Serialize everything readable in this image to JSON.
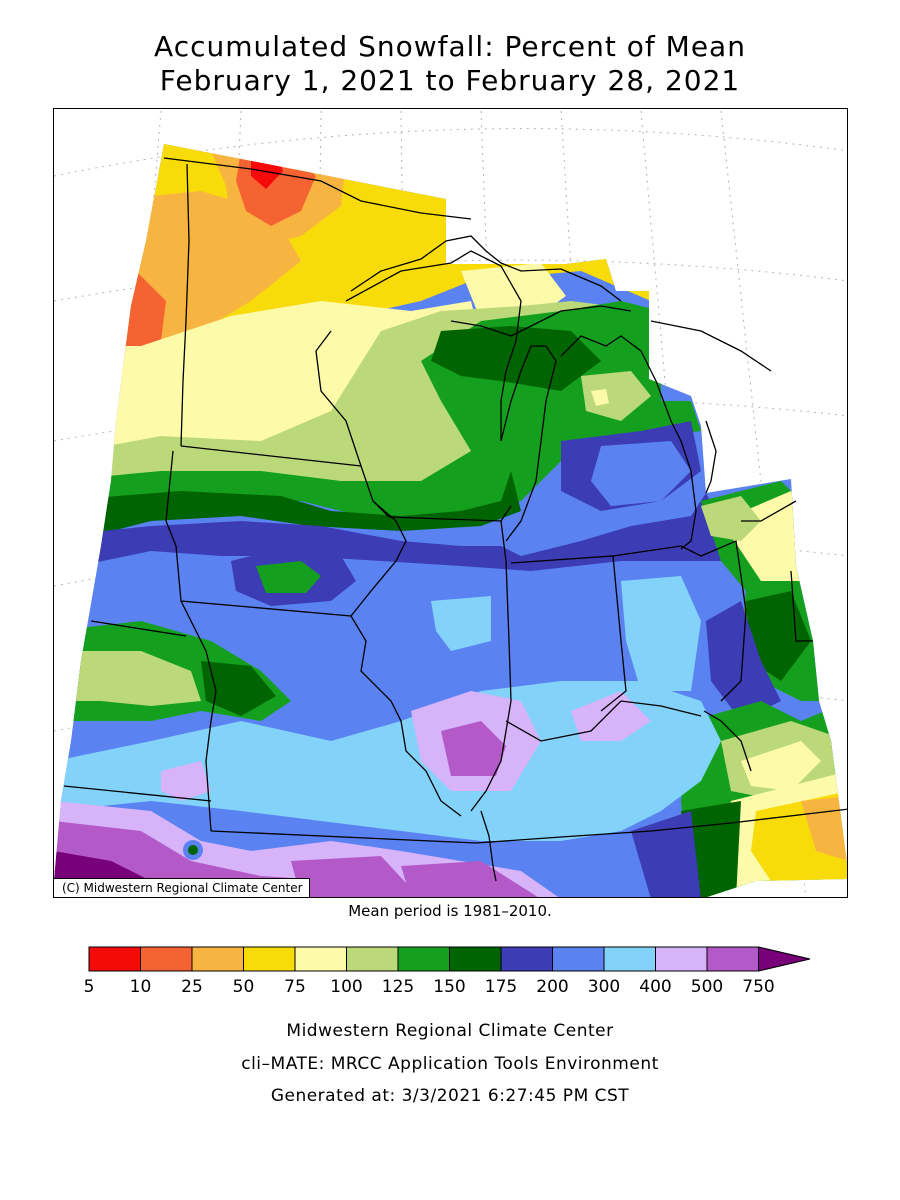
{
  "title": {
    "line1": "Accumulated Snowfall: Percent of Mean",
    "line2": "February 1, 2021 to February 28, 2021"
  },
  "map": {
    "copyright": "(C) Midwestern Regional Climate Center",
    "mean_note": "Mean period is 1981–2010."
  },
  "legend": {
    "labels": [
      "5",
      "10",
      "25",
      "50",
      "75",
      "100",
      "125",
      "150",
      "175",
      "200",
      "300",
      "400",
      "500",
      "750"
    ],
    "colors": [
      "#f50a0a",
      "#f56332",
      "#f8b440",
      "#f8dc0a",
      "#fdfaaa",
      "#bcd97a",
      "#14a01e",
      "#006400",
      "#3c3cb4",
      "#5a82f0",
      "#82d2fa",
      "#d7b4fa",
      "#b45ac8",
      "#780078"
    ]
  },
  "footer": {
    "line1": "Midwestern Regional Climate Center",
    "line2": "cli–MATE: MRCC Application Tools Environment",
    "line3": "Generated at: 3/3/2021 6:27:45 PM CST"
  }
}
